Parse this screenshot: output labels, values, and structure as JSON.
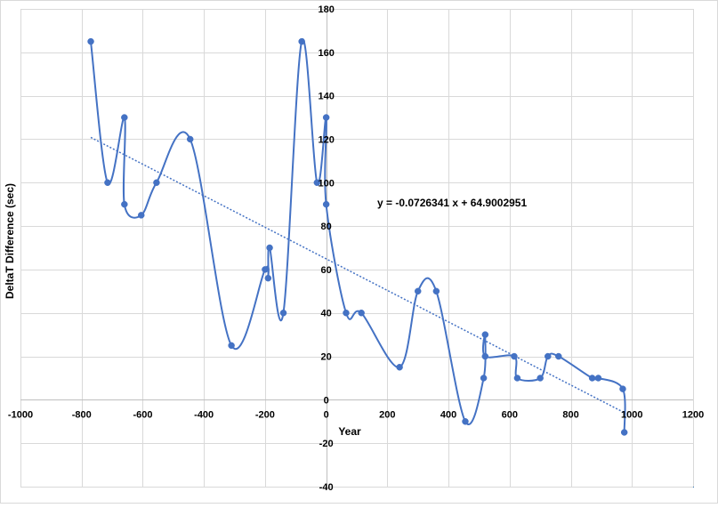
{
  "chart_data": {
    "type": "scatter",
    "title": "",
    "xlabel": "Year",
    "ylabel": "DeltaT Difference (sec)",
    "xlim": [
      -1000,
      1200
    ],
    "ylim": [
      -40,
      180
    ],
    "x_ticks": [
      -1000,
      -800,
      -600,
      -400,
      -200,
      0,
      200,
      400,
      600,
      800,
      1000,
      1200
    ],
    "y_ticks": [
      -40,
      -20,
      0,
      20,
      40,
      60,
      80,
      100,
      120,
      140,
      160,
      180
    ],
    "x_tick_labels": [
      "-1000",
      "-800",
      "-600",
      "-400",
      "-200",
      "0",
      "200",
      "400",
      "600",
      "800",
      "1000",
      "1200"
    ],
    "y_tick_labels": [
      "-40",
      "-20",
      "0",
      "20",
      "40",
      "60",
      "80",
      "100",
      "120",
      "140",
      "160",
      "180"
    ],
    "grid": true,
    "legend": "none",
    "series": [
      {
        "style": "smoothed line with markers",
        "color": "#4472C4",
        "points": [
          [
            -770,
            165
          ],
          [
            -715,
            100
          ],
          [
            -660,
            130
          ],
          [
            -660,
            90
          ],
          [
            -605,
            85
          ],
          [
            -555,
            100
          ],
          [
            -445,
            120
          ],
          [
            -310,
            25
          ],
          [
            -200,
            60
          ],
          [
            -190,
            56
          ],
          [
            -185,
            70
          ],
          [
            -140,
            40
          ],
          [
            -80,
            165
          ],
          [
            -30,
            100
          ],
          [
            0,
            130
          ],
          [
            0,
            90
          ],
          [
            65,
            40
          ],
          [
            115,
            40
          ],
          [
            240,
            15
          ],
          [
            300,
            50
          ],
          [
            360,
            50
          ],
          [
            455,
            -10
          ],
          [
            515,
            10
          ],
          [
            520,
            30
          ],
          [
            520,
            20
          ],
          [
            615,
            20
          ],
          [
            625,
            10
          ],
          [
            700,
            10
          ],
          [
            725,
            20
          ],
          [
            760,
            20
          ],
          [
            870,
            10
          ],
          [
            890,
            10
          ],
          [
            970,
            5
          ],
          [
            975,
            -15
          ]
        ]
      }
    ],
    "trendline": {
      "type": "linear",
      "color": "#4472C4",
      "style": "dotted",
      "slope": -0.0726341,
      "intercept": 64.9002951,
      "x_range": [
        -770,
        975
      ],
      "equation_label": "y = -0.0726341 x + 64.9002951"
    }
  }
}
